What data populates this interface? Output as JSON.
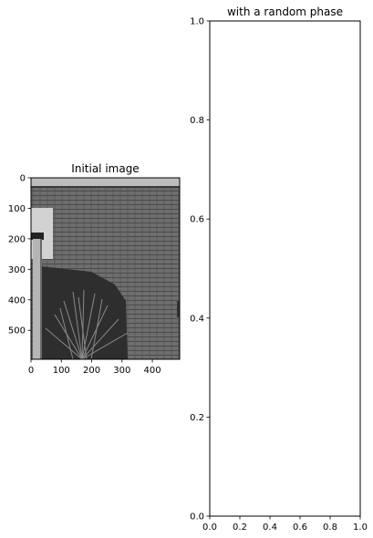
{
  "chart_data": [
    {
      "type": "image",
      "title": "Initial image",
      "image_description": "grayscale photo of a brick wall with a pipe on the left, a dark shadow and a shrub at the bottom",
      "xlim": [
        0,
        490
      ],
      "ylim": [
        595,
        0
      ],
      "xticks": [
        0,
        100,
        200,
        300,
        400
      ],
      "yticks": [
        0,
        100,
        200,
        300,
        400,
        500
      ],
      "xtick_labels": [
        "0",
        "100",
        "200",
        "300",
        "400"
      ],
      "ytick_labels": [
        "0",
        "100",
        "200",
        "300",
        "400",
        "500"
      ]
    },
    {
      "type": "empty",
      "title": "with a random phase",
      "xlim": [
        0,
        1
      ],
      "ylim": [
        0,
        1
      ],
      "xticks": [
        0,
        0.2,
        0.4,
        0.6,
        0.8,
        1.0
      ],
      "yticks": [
        0,
        0.2,
        0.4,
        0.6,
        0.8,
        1.0
      ],
      "xtick_labels": [
        "0.0",
        "0.2",
        "0.4",
        "0.6",
        "0.8",
        "1.0"
      ],
      "ytick_labels": [
        "0.0",
        "0.2",
        "0.4",
        "0.6",
        "0.8",
        "1.0"
      ]
    }
  ]
}
